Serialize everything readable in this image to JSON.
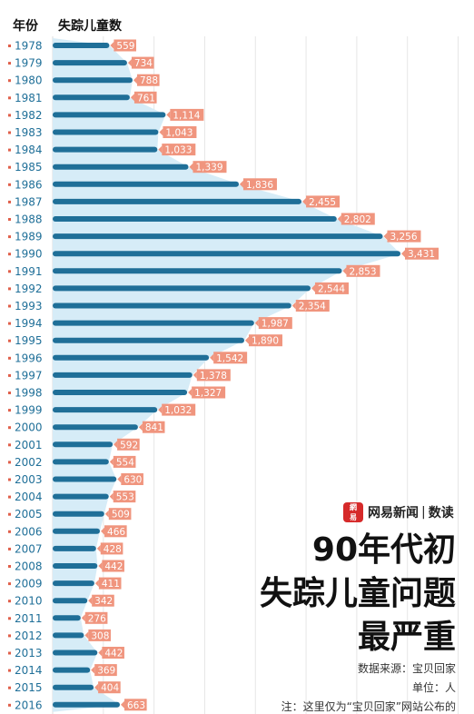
{
  "header": {
    "year_label": "年份",
    "count_label": "失踪儿童数"
  },
  "brand": {
    "logo_text": "網易",
    "name": "网易新闻",
    "separator": "|",
    "sub": "数读"
  },
  "title": {
    "line1": "90年代初",
    "line2": "失踪儿童问题",
    "line3": "最严重"
  },
  "meta": {
    "source": "数据来源：宝贝回家",
    "unit": "单位：人",
    "note": "注：这里仅为“宝贝回家”网站公布的"
  },
  "colors": {
    "bar": "#1f6f98",
    "area": "#d6ecf7",
    "label_bg": "#f0957e",
    "year_text": "#1f6f98",
    "marker": "#e05f4a"
  },
  "chart_data": {
    "type": "bar",
    "orientation": "horizontal",
    "categories": [
      "1978",
      "1979",
      "1980",
      "1981",
      "1982",
      "1983",
      "1984",
      "1985",
      "1986",
      "1987",
      "1988",
      "1989",
      "1990",
      "1991",
      "1992",
      "1993",
      "1994",
      "1995",
      "1996",
      "1997",
      "1998",
      "1999",
      "2000",
      "2001",
      "2002",
      "2003",
      "2004",
      "2005",
      "2006",
      "2007",
      "2008",
      "2009",
      "2010",
      "2011",
      "2012",
      "2013",
      "2014",
      "2015",
      "2016"
    ],
    "values": [
      559,
      734,
      788,
      761,
      1114,
      1043,
      1033,
      1339,
      1836,
      2455,
      2802,
      3256,
      3431,
      2853,
      2544,
      2354,
      1987,
      1890,
      1542,
      1378,
      1327,
      1032,
      841,
      592,
      554,
      630,
      553,
      509,
      466,
      428,
      442,
      411,
      342,
      276,
      308,
      442,
      369,
      404,
      663
    ],
    "value_labels": [
      "559",
      "734",
      "788",
      "761",
      "1,114",
      "1,043",
      "1,033",
      "1,339",
      "1,836",
      "2,455",
      "2,802",
      "3,256",
      "3,431",
      "2,853",
      "2,544",
      "2,354",
      "1,987",
      "1,890",
      "1,542",
      "1,378",
      "1,327",
      "1,032",
      "841",
      "592",
      "554",
      "630",
      "553",
      "509",
      "466",
      "428",
      "442",
      "411",
      "342",
      "276",
      "308",
      "442",
      "369",
      "404",
      "663"
    ],
    "xlim": [
      0,
      4000
    ],
    "grid": true
  }
}
